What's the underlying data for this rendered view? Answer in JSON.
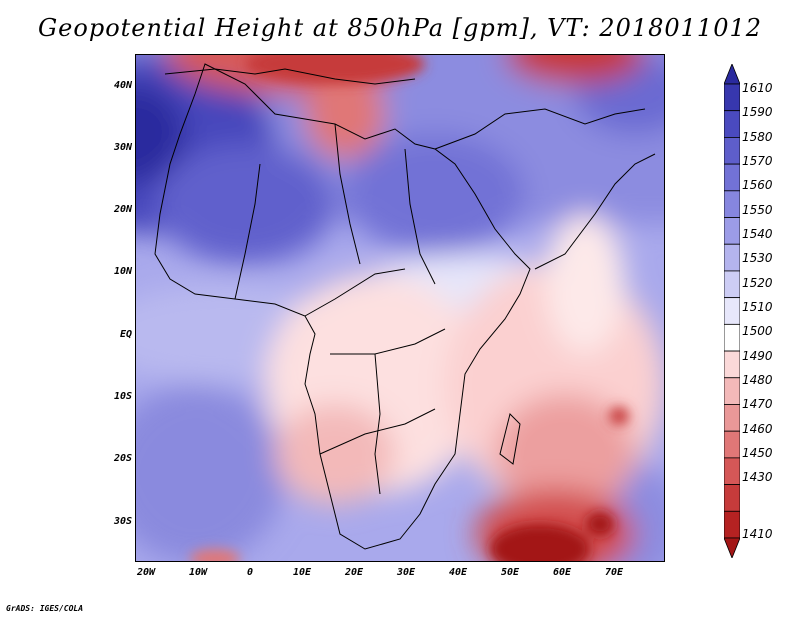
{
  "title": "Geopotential Height at 850hPa [gpm], VT: 2018011012",
  "credit": "GrADS: IGES/COLA",
  "lat_labels": [
    "40N",
    "30N",
    "20N",
    "10N",
    "EQ",
    "10S",
    "20S",
    "30S"
  ],
  "lon_labels": [
    "20W",
    "10W",
    "0",
    "10E",
    "20E",
    "30E",
    "40E",
    "50E",
    "60E",
    "70E"
  ],
  "colorbar": {
    "levels": [
      "1610",
      "1590",
      "1580",
      "1570",
      "1560",
      "1550",
      "1540",
      "1530",
      "1520",
      "1510",
      "1500",
      "1490",
      "1480",
      "1470",
      "1460",
      "1450",
      "1430",
      "1410"
    ],
    "colors": [
      "#2a2a9e",
      "#3737ae",
      "#4a4abf",
      "#5e5ecb",
      "#7272d6",
      "#8686df",
      "#9c9ce7",
      "#b4b4ee",
      "#cdcdf5",
      "#e7e7fb",
      "#ffffff",
      "#fbd9d9",
      "#f3b9b9",
      "#ea9898",
      "#e07777",
      "#d55757",
      "#c63b3b",
      "#b52222",
      "#a31616"
    ]
  }
}
